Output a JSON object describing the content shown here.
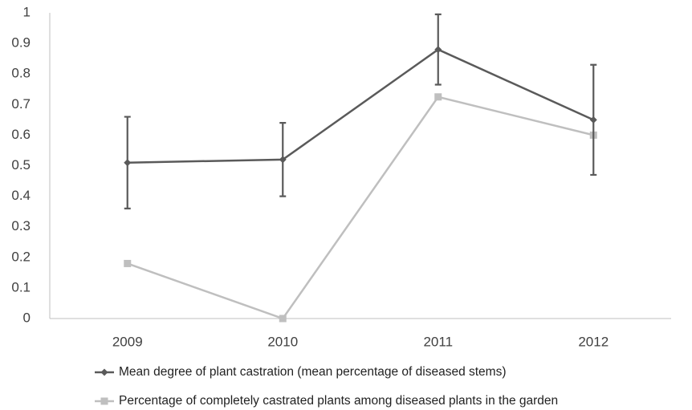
{
  "chart_data": {
    "type": "line",
    "categories": [
      "2009",
      "2010",
      "2011",
      "2012"
    ],
    "series": [
      {
        "name": "Mean degree of plant castration (mean percentage of diseased stems)",
        "color": "#5a5a5a",
        "marker": "diamond",
        "values": [
          0.51,
          0.52,
          0.88,
          0.65
        ],
        "errors": [
          0.15,
          0.12,
          0.115,
          0.18
        ]
      },
      {
        "name": "Percentage of completely castrated plants among diseased plants in the garden",
        "color": "#bfbfbf",
        "marker": "square",
        "values": [
          0.18,
          0,
          0.725,
          0.6
        ]
      }
    ],
    "ylim": [
      0,
      1
    ],
    "yticks": [
      0,
      0.1,
      0.2,
      0.3,
      0.4,
      0.5,
      0.6,
      0.7,
      0.8,
      0.9,
      1
    ],
    "grid": false,
    "legend": "bottom"
  }
}
